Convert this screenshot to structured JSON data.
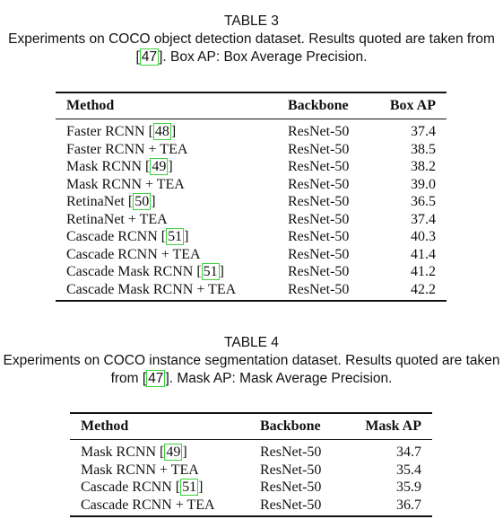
{
  "tables": [
    {
      "number": "TABLE 3",
      "caption_before": "Experiments on COCO object detection dataset. Results quoted are taken from ",
      "caption_cite": "47",
      "caption_after": ". Box AP: Box Average Precision.",
      "headers": [
        "Method",
        "Backbone",
        "Box AP"
      ],
      "rows": [
        {
          "method": "Faster RCNN ",
          "cite": "48",
          "backbone": "ResNet-50",
          "value": "37.4"
        },
        {
          "method": "Faster RCNN + TEA",
          "cite": "",
          "backbone": "ResNet-50",
          "value": "38.5"
        },
        {
          "method": "Mask RCNN ",
          "cite": "49",
          "backbone": "ResNet-50",
          "value": "38.2"
        },
        {
          "method": "Mask RCNN + TEA",
          "cite": "",
          "backbone": "ResNet-50",
          "value": "39.0"
        },
        {
          "method": "RetinaNet ",
          "cite": "50",
          "backbone": "ResNet-50",
          "value": "36.5"
        },
        {
          "method": "RetinaNet + TEA",
          "cite": "",
          "backbone": "ResNet-50",
          "value": "37.4"
        },
        {
          "method": "Cascade RCNN ",
          "cite": "51",
          "backbone": "ResNet-50",
          "value": "40.3"
        },
        {
          "method": "Cascade RCNN + TEA",
          "cite": "",
          "backbone": "ResNet-50",
          "value": "41.4"
        },
        {
          "method": "Cascade Mask RCNN ",
          "cite": "51",
          "backbone": "ResNet-50",
          "value": "41.2"
        },
        {
          "method": "Cascade Mask RCNN + TEA",
          "cite": "",
          "backbone": "ResNet-50",
          "value": "42.2"
        }
      ]
    },
    {
      "number": "TABLE 4",
      "caption_before": "Experiments on COCO instance segmentation dataset. Results quoted are taken from ",
      "caption_cite": "47",
      "caption_after": ". Mask AP: Mask Average Precision.",
      "headers": [
        "Method",
        "Backbone",
        "Mask AP"
      ],
      "rows": [
        {
          "method": "Mask RCNN ",
          "cite": "49",
          "backbone": "ResNet-50",
          "value": "34.7"
        },
        {
          "method": "Mask RCNN + TEA",
          "cite": "",
          "backbone": "ResNet-50",
          "value": "35.4"
        },
        {
          "method": "Cascade RCNN ",
          "cite": "51",
          "backbone": "ResNet-50",
          "value": "35.9"
        },
        {
          "method": "Cascade RCNN + TEA",
          "cite": "",
          "backbone": "ResNet-50",
          "value": "36.7"
        }
      ]
    }
  ]
}
